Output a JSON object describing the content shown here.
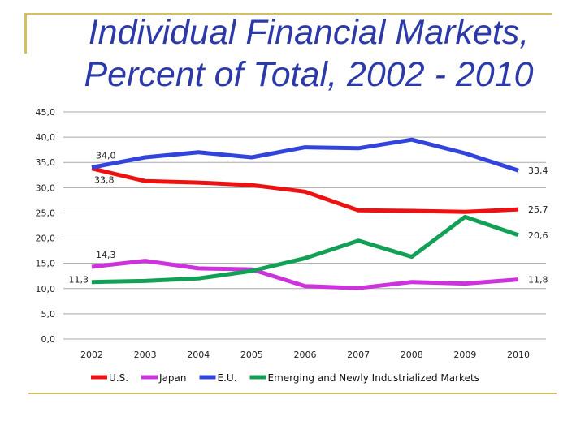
{
  "slide": {
    "title_line1": "Individual Financial Markets,",
    "title_line2": "Percent of Total, 2002 - 2010",
    "accent_color": "#d4c060",
    "title_color": "#2b3aa8"
  },
  "chart_data": {
    "type": "line",
    "title": "Individual Financial Markets, Percent of Total, 2002 - 2010",
    "x": [
      "2002",
      "2003",
      "2004",
      "2005",
      "2006",
      "2007",
      "2008",
      "2009",
      "2010"
    ],
    "ylim": [
      0,
      45
    ],
    "yticks": [
      "0,0",
      "5,0",
      "10,0",
      "15,0",
      "20,0",
      "25,0",
      "30,0",
      "35,0",
      "40,0",
      "45,0"
    ],
    "grid": true,
    "legend": "bottom",
    "series": [
      {
        "name": "U.S.",
        "color": "#ee1111",
        "values": [
          33.8,
          31.3,
          31.0,
          30.5,
          29.2,
          25.5,
          25.4,
          25.2,
          25.7
        ],
        "labels": [
          {
            "index": 0,
            "text": "33,8",
            "pos": "below"
          },
          {
            "index": 8,
            "text": "25,7",
            "pos": "right"
          }
        ]
      },
      {
        "name": "Japan",
        "color": "#cc33dd",
        "values": [
          14.3,
          15.5,
          14.0,
          13.8,
          10.5,
          10.1,
          11.3,
          11.0,
          11.8
        ],
        "labels": [
          {
            "index": 0,
            "text": "14,3",
            "pos": "above"
          },
          {
            "index": 8,
            "text": "11,8",
            "pos": "right"
          }
        ]
      },
      {
        "name": "E.U.",
        "color": "#3344dd",
        "values": [
          34.0,
          36.0,
          37.0,
          36.0,
          38.0,
          37.8,
          39.5,
          36.8,
          33.4
        ],
        "labels": [
          {
            "index": 0,
            "text": "34,0",
            "pos": "above"
          },
          {
            "index": 8,
            "text": "33,4",
            "pos": "right"
          }
        ]
      },
      {
        "name": "Emerging and Newly Industrialized Markets",
        "color": "#11a055",
        "values": [
          11.3,
          11.5,
          12.0,
          13.5,
          16.0,
          19.5,
          16.3,
          24.2,
          20.6
        ],
        "labels": [
          {
            "index": 0,
            "text": "11,3",
            "pos": "left"
          },
          {
            "index": 8,
            "text": "20,6",
            "pos": "right"
          }
        ]
      }
    ]
  }
}
